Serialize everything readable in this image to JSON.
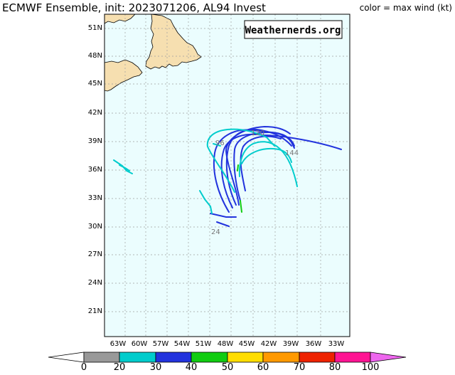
{
  "header": {
    "title": "ECMWF Ensemble, init: 2023071206, AL94 Invest",
    "legend_note": "color = max wind (kt)"
  },
  "watermark": "Weathernerds.org",
  "colors": {
    "ocean": "#ebfdfe",
    "land": "#f6dfb0",
    "grid": "#9e9e9e"
  },
  "map": {
    "lat_labels": [
      "51N",
      "48N",
      "45N",
      "42N",
      "39N",
      "36N",
      "33N",
      "30N",
      "27N",
      "24N",
      "21N"
    ],
    "lon_labels": [
      "63W",
      "60W",
      "57W",
      "54W",
      "51W",
      "48W",
      "45W",
      "42W",
      "39W",
      "36W",
      "33W"
    ],
    "track_hour_labels": [
      "24",
      "96",
      "120",
      "144"
    ]
  },
  "colorbar": {
    "ticks": [
      "0",
      "20",
      "30",
      "40",
      "50",
      "60",
      "70",
      "80",
      "100"
    ],
    "colors": [
      "#999999",
      "#00cccc",
      "#2233dd",
      "#11cc11",
      "#ffdd00",
      "#ff9900",
      "#ee2200",
      "#ff1493"
    ],
    "arrow_left": "#ffffff",
    "arrow_right": "#ee66ee"
  }
}
